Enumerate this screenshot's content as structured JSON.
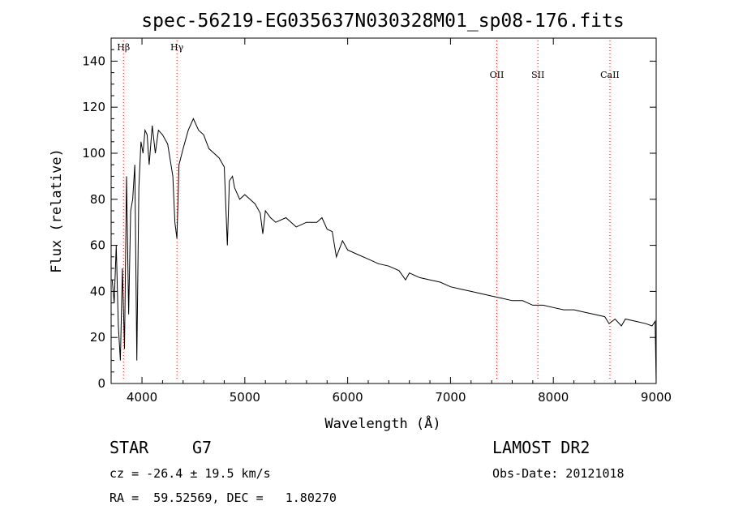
{
  "chart_data": {
    "type": "line",
    "title": "spec-56219-EG035637N030328M01_sp08-176.fits",
    "xlabel": "Wavelength (Å)",
    "ylabel": "Flux (relative)",
    "xlim": [
      3700,
      9000
    ],
    "ylim": [
      0,
      150
    ],
    "xticks": [
      4000,
      5000,
      6000,
      7000,
      8000,
      9000
    ],
    "yticks": [
      0,
      20,
      40,
      60,
      80,
      100,
      120,
      140
    ],
    "grid": false,
    "line_color": "#000000",
    "marker_color": "#ff0000",
    "lines": [
      {
        "label": "Hβ",
        "wavelength": 3820
      },
      {
        "label": "Hγ",
        "wavelength": 4340
      },
      {
        "label": "OII",
        "wavelength": 7450
      },
      {
        "label": "SII",
        "wavelength": 7850
      },
      {
        "label": "CaII",
        "wavelength": 8550
      }
    ],
    "series": [
      {
        "x": [
          3710,
          3730,
          3750,
          3770,
          3790,
          3810,
          3830,
          3850,
          3870,
          3890,
          3910,
          3930,
          3950,
          3970,
          3990,
          4010,
          4030,
          4050,
          4070,
          4100,
          4130,
          4160,
          4200,
          4250,
          4300,
          4320,
          4340,
          4360,
          4400,
          4450,
          4500,
          4550,
          4600,
          4650,
          4700,
          4750,
          4800,
          4830,
          4850,
          4880,
          4900,
          4950,
          5000,
          5050,
          5100,
          5150,
          5175,
          5200,
          5250,
          5300,
          5400,
          5500,
          5600,
          5700,
          5750,
          5800,
          5850,
          5890,
          5950,
          6000,
          6100,
          6200,
          6300,
          6400,
          6500,
          6563,
          6600,
          6700,
          6800,
          6900,
          7000,
          7100,
          7200,
          7300,
          7400,
          7500,
          7600,
          7700,
          7800,
          7900,
          8000,
          8100,
          8200,
          8300,
          8400,
          8500,
          8542,
          8600,
          8662,
          8700,
          8800,
          8900,
          8960,
          8990,
          9000
        ],
        "y": [
          45,
          35,
          60,
          25,
          10,
          50,
          15,
          90,
          30,
          75,
          80,
          95,
          10,
          85,
          105,
          100,
          110,
          108,
          95,
          112,
          100,
          110,
          108,
          104,
          90,
          70,
          63,
          95,
          102,
          110,
          115,
          110,
          108,
          102,
          100,
          98,
          94,
          60,
          88,
          90,
          85,
          80,
          82,
          80,
          78,
          74,
          65,
          75,
          72,
          70,
          72,
          68,
          70,
          70,
          72,
          67,
          66,
          55,
          62,
          58,
          56,
          54,
          52,
          51,
          49,
          45,
          48,
          46,
          45,
          44,
          42,
          41,
          40,
          39,
          38,
          37,
          36,
          36,
          34,
          34,
          33,
          32,
          32,
          31,
          30,
          29,
          26,
          28,
          25,
          28,
          27,
          26,
          25,
          27,
          0
        ]
      }
    ]
  },
  "info": {
    "object_type": "STAR",
    "subclass": "G7",
    "survey": "LAMOST DR2",
    "cz": "cz = -26.4 ± 19.5 km/s",
    "obs_date": "Obs-Date: 20121018",
    "radec": "RA =  59.52569, DEC =   1.80270"
  }
}
